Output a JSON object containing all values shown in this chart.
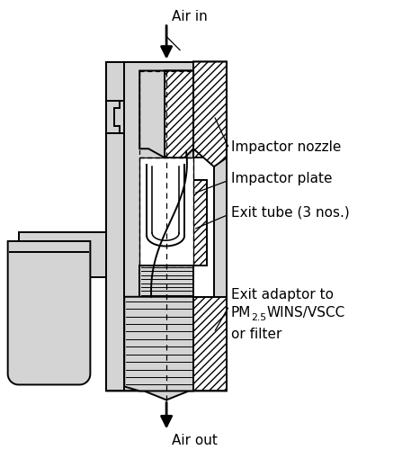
{
  "background_color": "#ffffff",
  "body_fill": "#d4d4d4",
  "line_color": "#000000",
  "hatch_color": "#000000",
  "labels": {
    "air_in": "Air in",
    "air_out": "Air out",
    "impactor_nozzle": "Impactor nozzle",
    "impactor_plate": "Impactor plate",
    "exit_tube": "Exit tube (3 nos.)",
    "exit_adaptor_line1": "Exit adaptor to",
    "exit_adaptor_line2": "WINS/VSCC",
    "exit_adaptor_line3": "or filter"
  },
  "figsize": [
    4.37,
    5.0
  ],
  "dpi": 100
}
